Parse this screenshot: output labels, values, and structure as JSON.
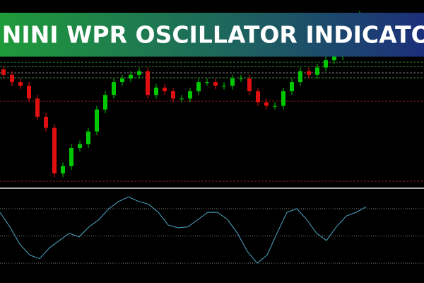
{
  "banner": {
    "title": "VININI WPR OSCILLATOR INDICATOR"
  },
  "chart_data": [
    {
      "type": "candlestick",
      "ylim": [
        0,
        100
      ],
      "up_color": "#00c800",
      "down_color": "#e01010",
      "open": [
        62,
        59,
        55,
        53,
        46,
        36,
        30,
        5,
        9,
        19,
        21,
        28,
        40,
        48,
        55,
        57,
        59,
        61,
        48,
        52,
        50,
        46,
        46,
        50,
        55,
        55,
        53,
        53,
        57,
        57,
        50,
        44,
        42,
        42,
        50,
        55,
        61,
        59,
        63,
        67,
        69,
        79,
        88
      ],
      "high": [
        64,
        61,
        57,
        55,
        48,
        38,
        32,
        11,
        21,
        23,
        30,
        42,
        50,
        57,
        59,
        61,
        63,
        63,
        54,
        54,
        52,
        48,
        52,
        57,
        57,
        57,
        55,
        59,
        59,
        59,
        52,
        46,
        44,
        52,
        57,
        63,
        63,
        65,
        69,
        71,
        81,
        90,
        94
      ],
      "low": [
        57,
        53,
        51,
        44,
        34,
        28,
        3,
        3,
        7,
        17,
        19,
        26,
        38,
        46,
        53,
        55,
        57,
        46,
        46,
        48,
        44,
        44,
        44,
        48,
        53,
        51,
        51,
        51,
        55,
        48,
        42,
        40,
        40,
        40,
        48,
        53,
        57,
        57,
        61,
        65,
        67,
        77,
        86
      ],
      "close": [
        59,
        55,
        53,
        46,
        36,
        30,
        5,
        9,
        19,
        21,
        28,
        40,
        48,
        55,
        57,
        59,
        61,
        48,
        52,
        50,
        46,
        46,
        50,
        55,
        55,
        53,
        53,
        57,
        57,
        50,
        44,
        42,
        42,
        50,
        55,
        61,
        59,
        63,
        67,
        69,
        79,
        88,
        92
      ]
    },
    {
      "type": "line",
      "ylim": [
        -100,
        0
      ],
      "color": "#4fa8c8",
      "levels": [
        -20,
        -50,
        -80
      ],
      "values": [
        -24,
        -40,
        -59,
        -71,
        -75,
        -63,
        -55,
        -47,
        -51,
        -40,
        -32,
        -20,
        -12,
        -7,
        -12,
        -15,
        -24,
        -38,
        -41,
        -40,
        -32,
        -24,
        -24,
        -32,
        -47,
        -67,
        -80,
        -71,
        -47,
        -24,
        -20,
        -32,
        -47,
        -55,
        -40,
        -28,
        -24,
        -18
      ]
    }
  ]
}
